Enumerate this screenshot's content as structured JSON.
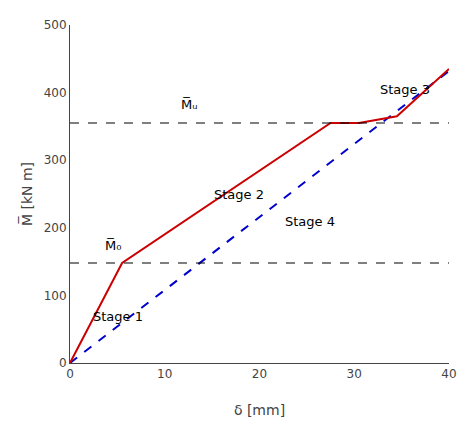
{
  "chart_data": {
    "type": "line",
    "xlabel": "δ [mm]",
    "ylabel": "M̅ [kN m]",
    "xlim": [
      0,
      40
    ],
    "ylim": [
      0,
      500
    ],
    "xticks": [
      0,
      10,
      20,
      30,
      40
    ],
    "yticks": [
      0,
      100,
      200,
      300,
      400,
      500
    ],
    "grid": false,
    "series": [
      {
        "x": [
          0,
          40
        ],
        "values": [
          0,
          432
        ],
        "color": "#0000cc",
        "line_style": "dashed"
      },
      {
        "x": [
          0,
          5.5,
          27.5,
          30.5,
          34.5,
          40
        ],
        "values": [
          0,
          148,
          355,
          355,
          365,
          435
        ],
        "color": "#cc0000",
        "line_style": "solid"
      }
    ],
    "hlines": [
      {
        "y": 148,
        "color": "#000000",
        "line_style": "dashed"
      },
      {
        "y": 355,
        "color": "#000000",
        "line_style": "dashed"
      }
    ],
    "annotations": [
      {
        "text": "Stage 1",
        "x": 2.2,
        "y": 55
      },
      {
        "text": "Stage 2",
        "x": 15.0,
        "y": 235
      },
      {
        "text": "Stage 3",
        "x": 32.5,
        "y": 390
      },
      {
        "text": "Stage 4",
        "x": 22.5,
        "y": 195
      },
      {
        "text": "M̅ᵤ",
        "x": 11.5,
        "y": 368
      },
      {
        "text": "M̅₀",
        "x": 3.5,
        "y": 160
      }
    ]
  }
}
